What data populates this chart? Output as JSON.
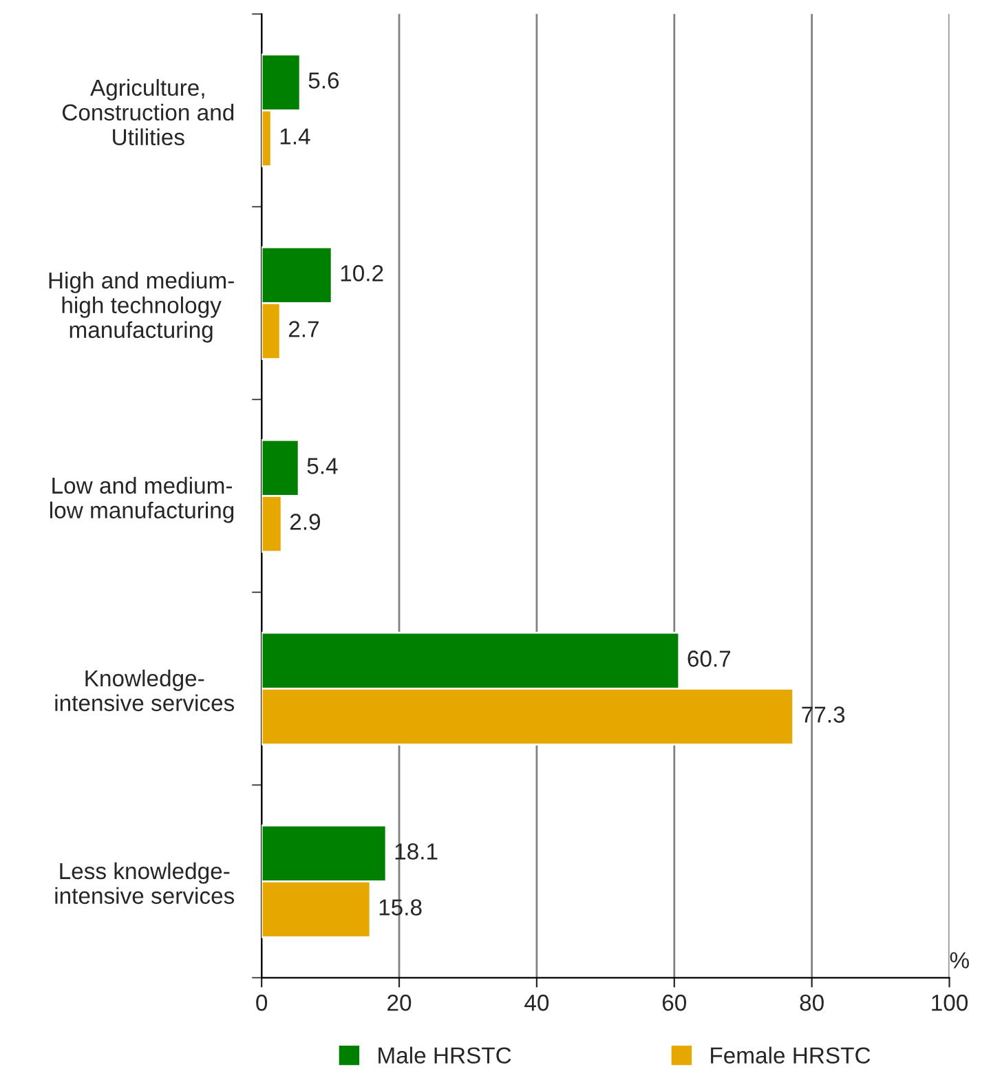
{
  "chart_data": {
    "type": "bar",
    "orientation": "horizontal",
    "xlabel": "%",
    "categories": [
      "Agriculture,\nConstruction and\nUtilities",
      "High and medium-\nhigh technology\nmanufacturing",
      "Low and medium-\nlow manufacturing",
      "Knowledge-\nintensive services",
      "Less knowledge-\nintensive services"
    ],
    "series": [
      {
        "name": "Male HRSTC",
        "color": "#008000",
        "values": [
          5.6,
          10.2,
          5.4,
          60.7,
          18.1
        ]
      },
      {
        "name": "Female HRSTC",
        "color": "#e6a800",
        "values": [
          1.4,
          2.7,
          2.9,
          77.3,
          15.8
        ]
      }
    ],
    "xlim": [
      0,
      100
    ],
    "xticks": [
      0,
      20,
      40,
      60,
      80,
      100
    ],
    "grid": "x",
    "legend": "bottom",
    "data_labels": true
  }
}
